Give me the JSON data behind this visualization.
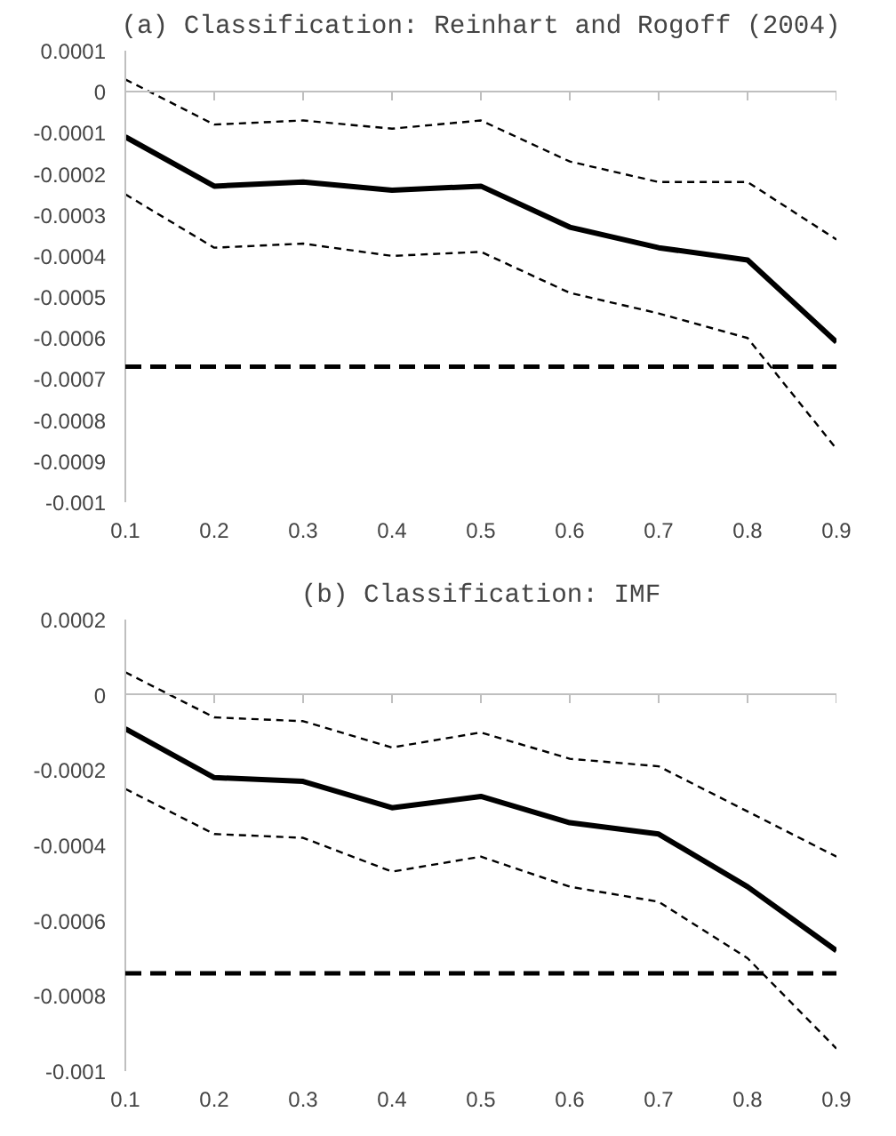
{
  "chart_data": [
    {
      "type": "line",
      "title": "(a) Classification: Reinhart and Rogoff (2004)",
      "categories": [
        "0.1",
        "0.2",
        "0.3",
        "0.4",
        "0.5",
        "0.6",
        "0.7",
        "0.8",
        "0.9"
      ],
      "series": [
        {
          "color": "#000000",
          "line_style": "solid",
          "values": [
            -0.00011,
            -0.00023,
            -0.00022,
            -0.00024,
            -0.00023,
            -0.00033,
            -0.00038,
            -0.00041,
            -0.00061
          ]
        },
        {
          "color": "#000000",
          "line_style": "dashed",
          "values": [
            3e-05,
            -8e-05,
            -7e-05,
            -9e-05,
            -7e-05,
            -0.00017,
            -0.00022,
            -0.00022,
            -0.00036
          ]
        },
        {
          "color": "#000000",
          "line_style": "dashed",
          "values": [
            -0.00025,
            -0.00038,
            -0.00037,
            -0.0004,
            -0.00039,
            -0.00049,
            -0.00054,
            -0.0006,
            -0.00087
          ]
        }
      ],
      "ref_lines": [
        {
          "axis": "y",
          "value": -0.00067,
          "color": "#000000",
          "line_style": "dashed"
        }
      ],
      "ylim": [
        -0.001,
        0.0001
      ],
      "yticks": [
        0.0001,
        0,
        -0.0001,
        -0.0002,
        -0.0003,
        -0.0004,
        -0.0005,
        -0.0006,
        -0.0007,
        -0.0008,
        -0.0009,
        -0.001
      ],
      "marker": "none"
    },
    {
      "type": "line",
      "title": "(b) Classification: IMF",
      "categories": [
        "0.1",
        "0.2",
        "0.3",
        "0.4",
        "0.5",
        "0.6",
        "0.7",
        "0.8",
        "0.9"
      ],
      "series": [
        {
          "color": "#000000",
          "line_style": "solid",
          "values": [
            -9e-05,
            -0.00022,
            -0.00023,
            -0.0003,
            -0.00027,
            -0.00034,
            -0.00037,
            -0.00051,
            -0.00068
          ]
        },
        {
          "color": "#000000",
          "line_style": "dashed",
          "values": [
            6e-05,
            -6e-05,
            -7e-05,
            -0.00014,
            -0.0001,
            -0.00017,
            -0.00019,
            -0.00031,
            -0.00043
          ]
        },
        {
          "color": "#000000",
          "line_style": "dashed",
          "values": [
            -0.00025,
            -0.00037,
            -0.00038,
            -0.00047,
            -0.00043,
            -0.00051,
            -0.00055,
            -0.0007,
            -0.00094
          ]
        }
      ],
      "ref_lines": [
        {
          "axis": "y",
          "value": -0.00074,
          "color": "#000000",
          "line_style": "dashed"
        }
      ],
      "ylim": [
        -0.001,
        0.0002
      ],
      "yticks": [
        0.0002,
        0,
        -0.0002,
        -0.0004,
        -0.0006,
        -0.0008,
        -0.001
      ],
      "marker": "none"
    }
  ]
}
